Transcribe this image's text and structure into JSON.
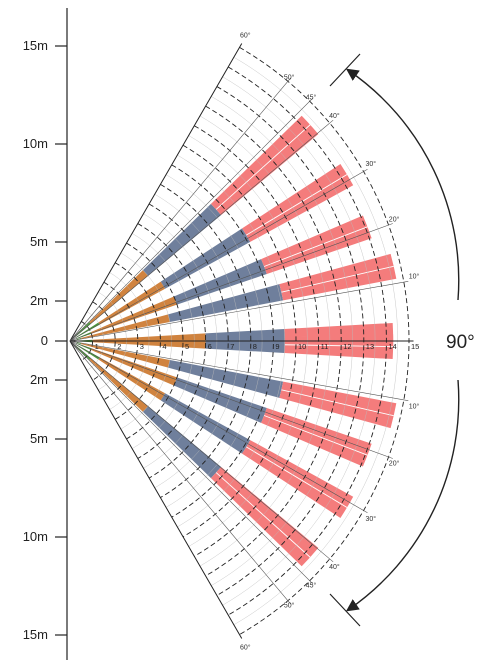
{
  "y_axis": {
    "labels": [
      "15m",
      "10m",
      "5m",
      "2m",
      "0",
      "2m",
      "5m",
      "10m",
      "15m"
    ]
  },
  "distance_labels": [
    "1",
    "2",
    "3",
    "4",
    "5",
    "6",
    "7",
    "8",
    "9",
    "10",
    "11",
    "12",
    "13",
    "14",
    "15"
  ],
  "angle_labels_upper": [
    "60°",
    "50°",
    "45°",
    "40°",
    "30°",
    "20°",
    "10°"
  ],
  "angle_labels_lower": [
    "10°",
    "20°",
    "30°",
    "40°",
    "45°",
    "50°",
    "60°"
  ],
  "coverage_angle_label": "90°",
  "colors": {
    "far_zone": "#f47c7c",
    "mid_zone": "#6f7f9c",
    "near_zone": "#d0833f",
    "close_zone": "#4e9a3c"
  },
  "beams": [
    {
      "angle": 1,
      "start": 1,
      "mid": 6,
      "far": 9.5,
      "end": 14.3
    },
    {
      "angle": 13,
      "start": 0.5,
      "mid": 4.5,
      "far": 9.6,
      "end": 14.7
    },
    {
      "angle": 21,
      "start": 1,
      "mid": 5,
      "far": 9.2,
      "end": 14.1
    },
    {
      "angle": 31,
      "start": 1.5,
      "mid": 4.8,
      "far": 9.1,
      "end": 14.3
    },
    {
      "angle": 42,
      "start": 1.2,
      "mid": 4.5,
      "far": 8.7,
      "end": 14.3
    },
    {
      "angle": -1,
      "start": 1,
      "mid": 6,
      "far": 9.5,
      "end": 14.3
    },
    {
      "angle": -13,
      "start": 0.5,
      "mid": 4.5,
      "far": 9.6,
      "end": 14.7
    },
    {
      "angle": -21,
      "start": 1,
      "mid": 5,
      "far": 9.2,
      "end": 14.1
    },
    {
      "angle": -31,
      "start": 1.5,
      "mid": 4.8,
      "far": 9.1,
      "end": 14.3
    },
    {
      "angle": -42,
      "start": 1.2,
      "mid": 4.5,
      "far": 8.7,
      "end": 14.3
    }
  ]
}
